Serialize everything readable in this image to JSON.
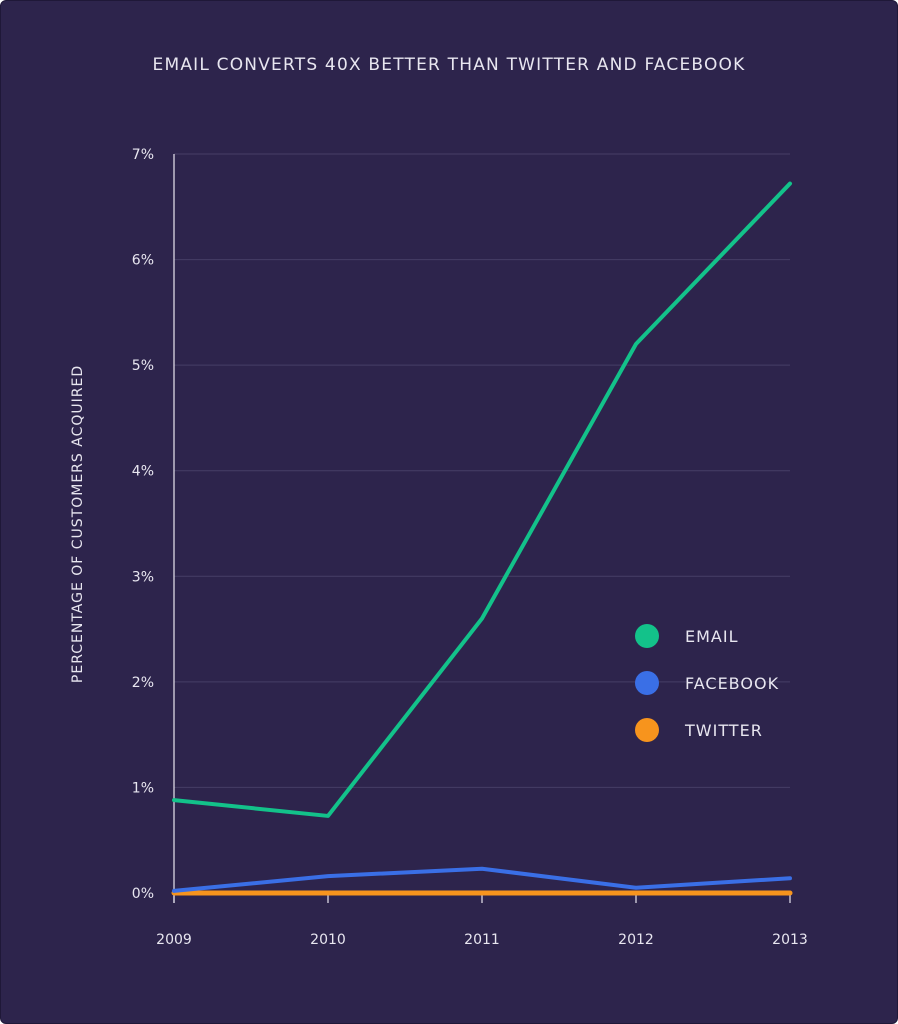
{
  "chart_data": {
    "type": "line",
    "title": "EMAIL CONVERTS 40X BETTER THAN TWITTER AND FACEBOOK",
    "xlabel": "",
    "ylabel": "PERCENTAGE OF CUSTOMERS ACQUIRED",
    "ylim": [
      0,
      7
    ],
    "yticks": [
      0,
      1,
      2,
      3,
      4,
      5,
      6,
      7
    ],
    "ytick_labels": [
      "0%",
      "1%",
      "2%",
      "3%",
      "4%",
      "5%",
      "6%",
      "7%"
    ],
    "categories": [
      "2009",
      "2010",
      "2011",
      "2012",
      "2013"
    ],
    "grid": true,
    "legend_position": "right",
    "series": [
      {
        "name": "EMAIL",
        "color": "#13c28a",
        "values": [
          0.88,
          0.73,
          2.6,
          5.2,
          6.72
        ]
      },
      {
        "name": "FACEBOOK",
        "color": "#3a6fe6",
        "values": [
          0.02,
          0.16,
          0.23,
          0.05,
          0.14
        ]
      },
      {
        "name": "TWITTER",
        "color": "#f7941d",
        "values": [
          0.0,
          0.0,
          0.0,
          0.0,
          0.0
        ]
      }
    ]
  },
  "colors": {
    "background": "#2d244c",
    "grid": "#463e66",
    "axis": "#e8e6f0"
  }
}
